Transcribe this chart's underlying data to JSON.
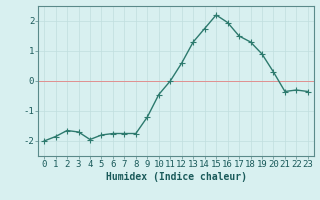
{
  "x": [
    0,
    1,
    2,
    3,
    4,
    5,
    6,
    7,
    8,
    9,
    10,
    11,
    12,
    13,
    14,
    15,
    16,
    17,
    18,
    19,
    20,
    21,
    22,
    23
  ],
  "y": [
    -2.0,
    -1.85,
    -1.65,
    -1.7,
    -1.95,
    -1.8,
    -1.75,
    -1.75,
    -1.75,
    -1.2,
    -0.45,
    0.0,
    0.6,
    1.3,
    1.75,
    2.2,
    1.95,
    1.5,
    1.3,
    0.9,
    0.3,
    -0.35,
    -0.3,
    -0.35
  ],
  "line_color": "#2d7a6e",
  "marker_color": "#2d7a6e",
  "bg_color": "#d8f0f0",
  "grid_color_major": "#c0dede",
  "grid_color_minor": "#c0dede",
  "xlabel": "Humidex (Indice chaleur)",
  "xlabel_fontsize": 7,
  "tick_fontsize": 6.5,
  "ylim": [
    -2.5,
    2.5
  ],
  "xlim": [
    -0.5,
    23.5
  ],
  "yticks": [
    -2,
    -1,
    0,
    1,
    2
  ],
  "xticks": [
    0,
    1,
    2,
    3,
    4,
    5,
    6,
    7,
    8,
    9,
    10,
    11,
    12,
    13,
    14,
    15,
    16,
    17,
    18,
    19,
    20,
    21,
    22,
    23
  ],
  "linewidth": 1.0,
  "markersize": 2.2,
  "spine_color": "#5a8a8a"
}
